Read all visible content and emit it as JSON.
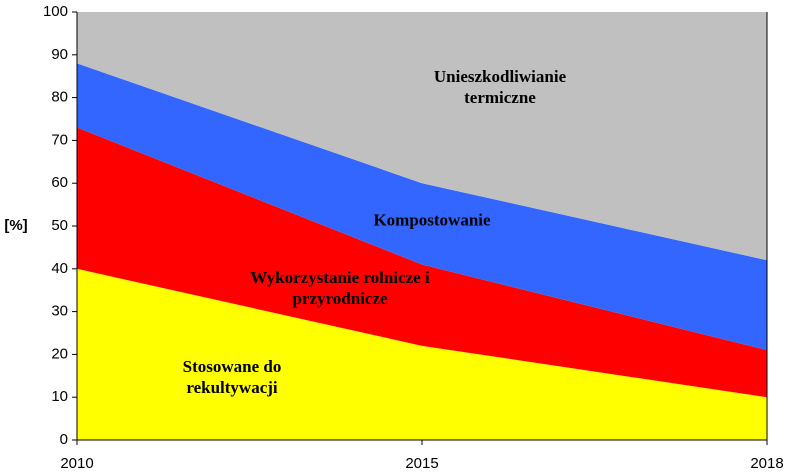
{
  "chart_data": {
    "type": "stacked-area",
    "y_label": "[%]",
    "categories": [
      "2010",
      "2015",
      "2018"
    ],
    "ylim": [
      0,
      100
    ],
    "yticks": [
      0,
      10,
      20,
      30,
      40,
      50,
      60,
      70,
      80,
      90,
      100
    ],
    "series": [
      {
        "name": "Stosowane do rekultywacji",
        "color": "#ffff00",
        "values": [
          40,
          22,
          10
        ]
      },
      {
        "name": "Wykorzystanie rolnicze i przyrodnicze",
        "color": "#ff0000",
        "values": [
          33,
          19,
          11
        ]
      },
      {
        "name": "Kompostowanie",
        "color": "#3366ff",
        "values": [
          15,
          19,
          21
        ]
      },
      {
        "name": "Unieszkodliwianie termiczne",
        "color": "#c0c0c0",
        "values": [
          12,
          40,
          58
        ]
      }
    ]
  }
}
